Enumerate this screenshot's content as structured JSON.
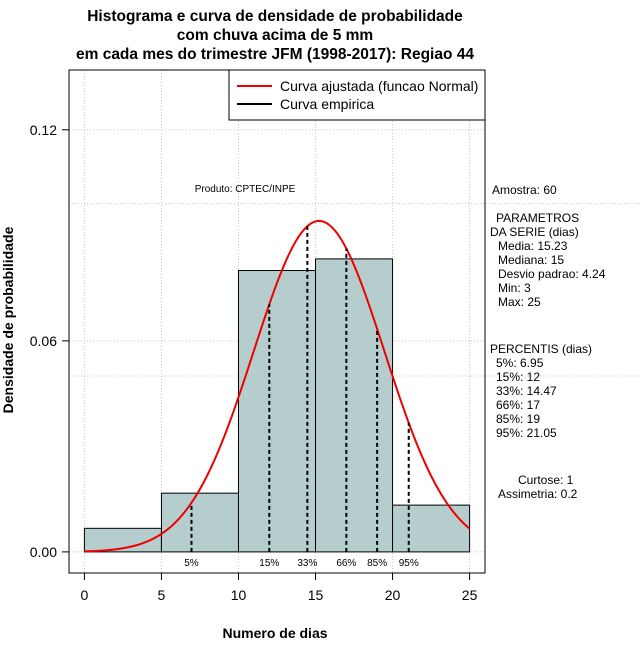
{
  "chart_data": {
    "type": "bar",
    "title_lines": [
      "Histograma e curva de densidade de probabilidade",
      "com chuva acima de 5 mm",
      "em cada mes do trimestre JFM (1998-2017): Regiao 44"
    ],
    "xlabel": "Numero de dias",
    "ylabel": "Densidade de probabilidade",
    "xlim": [
      -1,
      26
    ],
    "ylim": [
      -0.006,
      0.137
    ],
    "x_ticks": [
      0,
      5,
      10,
      15,
      20,
      25
    ],
    "y_ticks": [
      0.0,
      0.06,
      0.12
    ],
    "y_tick_labels": [
      "0.00",
      "0.06",
      "0.12"
    ],
    "grid_x": [
      0,
      5,
      10,
      15,
      20,
      25
    ],
    "grid_y": [
      0.0,
      0.06,
      0.12
    ],
    "bins": [
      {
        "x0": 0,
        "x1": 5,
        "density": 0.0067
      },
      {
        "x0": 5,
        "x1": 10,
        "density": 0.0167
      },
      {
        "x0": 10,
        "x1": 15,
        "density": 0.08
      },
      {
        "x0": 15,
        "x1": 20,
        "density": 0.0833
      },
      {
        "x0": 20,
        "x1": 25,
        "density": 0.0133
      }
    ],
    "fitted_curve": {
      "name": "Curva ajustada (funcao Normal)",
      "mean": 15.23,
      "sd": 4.24,
      "from": 0,
      "to": 25
    },
    "legend": [
      {
        "label": "Curva ajustada (funcao Normal)",
        "color": "#ee0000"
      },
      {
        "label": "Curva empirica",
        "color": "#000000"
      }
    ],
    "percentiles": [
      {
        "label": "5%",
        "x": 6.95
      },
      {
        "label": "15%",
        "x": 12
      },
      {
        "label": "33%",
        "x": 14.47
      },
      {
        "label": "66%",
        "x": 17
      },
      {
        "label": "85%",
        "x": 19
      },
      {
        "label": "95%",
        "x": 21.05
      }
    ],
    "source_label": "Produto: CPTEC/INPE",
    "side_info": {
      "amostra": "Amostra: 60",
      "parametros_title": [
        "PARAMETROS",
        "DA SERIE (dias)"
      ],
      "parametros": [
        "Media: 15.23",
        "Mediana: 15",
        "Desvio padrao: 4.24",
        "Min: 3",
        "Max: 25"
      ],
      "percentis_title": "PERCENTIS (dias)",
      "percentis": [
        "5%: 6.95",
        "15%: 12",
        "33%: 14.47",
        "66%: 17",
        "85%: 19",
        "95%: 21.05"
      ],
      "curtose": "Curtose: 1",
      "assimetria": "Assimetria: 0.2"
    }
  },
  "colors": {
    "bar_fill": "#b5cdcd",
    "curve": "#ee0000",
    "grid": "#c8c8c8"
  }
}
